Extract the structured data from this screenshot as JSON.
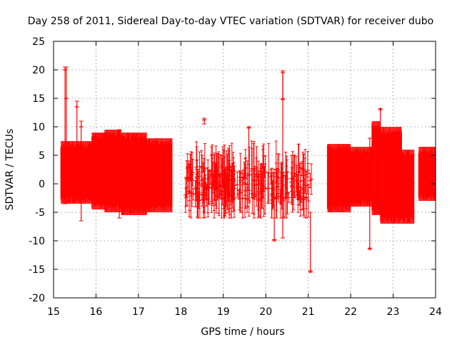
{
  "chart_data": {
    "type": "scatter",
    "title": "Day 258 of 2011, Sidereal Day-to-day VTEC variation (SDTVAR) for receiver dubo",
    "xlabel": "GPS time / hours",
    "ylabel": "SDTVAR / TECUs",
    "xlim": [
      15,
      24
    ],
    "ylim": [
      -20,
      25
    ],
    "xticks": [
      15,
      16,
      17,
      18,
      19,
      20,
      21,
      22,
      23,
      24
    ],
    "yticks": [
      -20,
      -15,
      -10,
      -5,
      0,
      5,
      10,
      15,
      20,
      25
    ],
    "grid": true,
    "series_color": "#ff0000",
    "segments": [
      {
        "x_start": 15.17,
        "x_end": 15.9,
        "low": -3.5,
        "high": 7.5
      },
      {
        "x_start": 15.9,
        "x_end": 16.2,
        "low": -4.5,
        "high": 9.0
      },
      {
        "x_start": 16.2,
        "x_end": 16.6,
        "low": -5.0,
        "high": 9.5
      },
      {
        "x_start": 16.6,
        "x_end": 17.2,
        "low": -5.5,
        "high": 9.0
      },
      {
        "x_start": 17.2,
        "x_end": 17.8,
        "low": -5.0,
        "high": 8.0
      },
      {
        "x_start": 21.45,
        "x_end": 22.0,
        "low": -5.0,
        "high": 7.0
      },
      {
        "x_start": 22.0,
        "x_end": 22.5,
        "low": -4.0,
        "high": 6.5
      },
      {
        "x_start": 22.5,
        "x_end": 22.7,
        "low": -5.5,
        "high": 11.0
      },
      {
        "x_start": 22.7,
        "x_end": 23.2,
        "low": -7.0,
        "high": 10.0
      },
      {
        "x_start": 23.2,
        "x_end": 23.5,
        "low": -7.0,
        "high": 6.0
      },
      {
        "x_start": 23.6,
        "x_end": 24.0,
        "low": -3.0,
        "high": 6.5
      }
    ],
    "sparse_region": {
      "x_start": 18.1,
      "x_end": 21.1,
      "low": -6.0,
      "high": 7.5
    },
    "spikes": [
      {
        "x": 15.27,
        "y": 20.0,
        "low": -3.5,
        "high": 20.5
      },
      {
        "x": 15.3,
        "y": 15.0,
        "low": 0.0,
        "high": 20.5
      },
      {
        "x": 15.55,
        "y": 13.5,
        "low": 3.0,
        "high": 14.5
      },
      {
        "x": 15.65,
        "y": 10.0,
        "low": -6.5,
        "high": 11.0
      },
      {
        "x": 16.55,
        "y": 8.0,
        "low": -6.0,
        "high": 9.5
      },
      {
        "x": 18.55,
        "y": 11.2,
        "low": 10.5,
        "high": 11.5
      },
      {
        "x": 19.6,
        "y": 9.8,
        "low": -3.0,
        "high": 10.0
      },
      {
        "x": 20.2,
        "y": -9.8,
        "low": -10.0,
        "high": 2.0
      },
      {
        "x": 20.4,
        "y": 14.8,
        "low": -9.5,
        "high": 19.5
      },
      {
        "x": 20.4,
        "y": 19.5,
        "low": 15.0,
        "high": 19.8
      },
      {
        "x": 21.05,
        "y": -15.3,
        "low": -15.5,
        "high": -5.0
      },
      {
        "x": 22.45,
        "y": -11.3,
        "low": -11.5,
        "high": 8.0
      },
      {
        "x": 22.7,
        "y": 13.0,
        "low": 5.0,
        "high": 13.2
      }
    ]
  }
}
